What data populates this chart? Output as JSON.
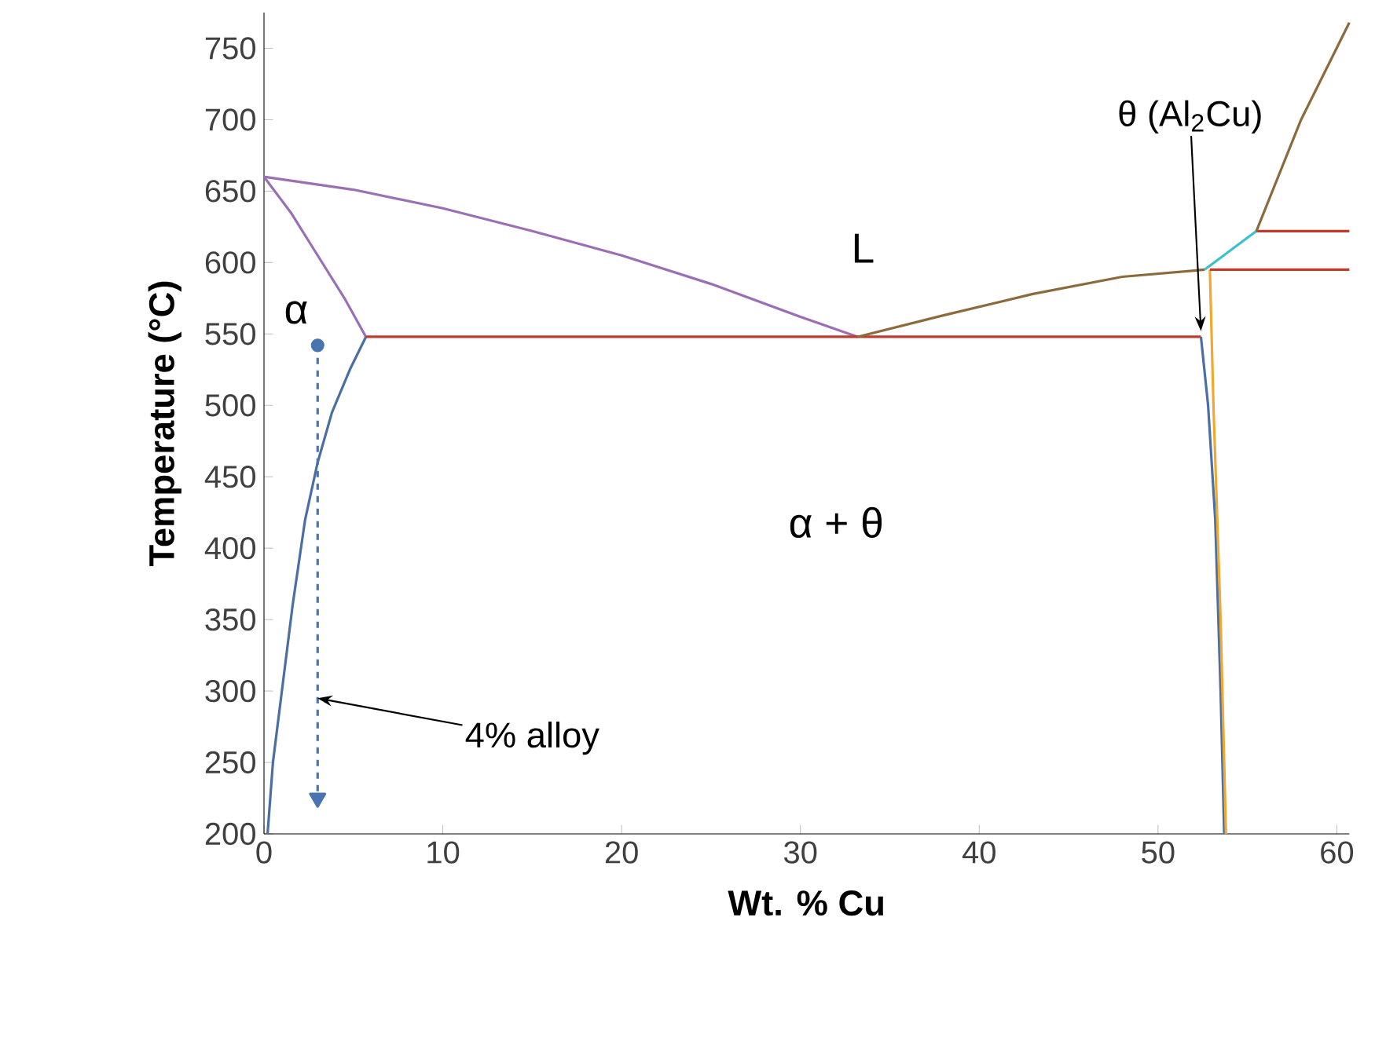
{
  "chart_data": {
    "type": "line",
    "xlabel": "Wt. % Cu",
    "ylabel": "Temperature (°C)",
    "xlim": [
      0,
      60.7
    ],
    "ylim": [
      200,
      775
    ],
    "xticks": [
      0,
      10,
      20,
      30,
      40,
      50,
      60
    ],
    "yticks": [
      200,
      250,
      300,
      350,
      400,
      450,
      500,
      550,
      600,
      650,
      700,
      750
    ],
    "grid": false,
    "marker": "none",
    "line_style": "solid",
    "series": [
      {
        "color": "#9b6fb5",
        "x": [
          0,
          5,
          10,
          15,
          20,
          25,
          30,
          33.2
        ],
        "values": [
          660,
          651,
          638,
          622,
          605,
          585,
          562,
          548
        ]
      },
      {
        "color": "#9b6fb5",
        "x": [
          0,
          1.5,
          3,
          4.5,
          5.7
        ],
        "values": [
          660,
          635,
          605,
          575,
          548
        ]
      },
      {
        "color": "#4a6fa5",
        "x": [
          5.7,
          4.8,
          3.8,
          3,
          2.3,
          1.6,
          1,
          0.5,
          0.2
        ],
        "values": [
          548,
          525,
          495,
          460,
          420,
          360,
          300,
          250,
          200
        ]
      },
      {
        "color": "#c0392b",
        "x": [
          5.7,
          52.4
        ],
        "values": [
          548,
          548
        ]
      },
      {
        "color": "#8b6b3d",
        "x": [
          33.2,
          38,
          43,
          48,
          52.6
        ],
        "values": [
          548,
          563,
          578,
          590,
          595
        ]
      },
      {
        "color": "#4a6fa5",
        "x": [
          52.4,
          52.8,
          53.2,
          53.5,
          53.7
        ],
        "values": [
          548,
          500,
          420,
          300,
          200
        ]
      },
      {
        "color": "#f0a830",
        "x": [
          52.9,
          53.1,
          53.5,
          53.8
        ],
        "values": [
          595,
          500,
          350,
          200
        ]
      },
      {
        "color": "#c0392b",
        "x": [
          52.9,
          60.7
        ],
        "values": [
          595,
          595
        ]
      },
      {
        "color": "#3cc0d0",
        "x": [
          52.6,
          55.5
        ],
        "values": [
          595,
          622
        ]
      },
      {
        "color": "#c0392b",
        "x": [
          55.5,
          60.7
        ],
        "values": [
          622,
          622
        ]
      },
      {
        "color": "#8b6b3d",
        "x": [
          55.5,
          58,
          60.7
        ],
        "values": [
          622,
          700,
          768
        ]
      },
      {
        "color": "#4a74b0",
        "line_style": "dashed",
        "marker": "triangle",
        "x": [
          3,
          3
        ],
        "values": [
          542,
          225
        ]
      },
      {
        "type": "scatter",
        "color": "#4a74b0",
        "marker": "circle",
        "x": [
          3
        ],
        "values": [
          542
        ]
      }
    ],
    "annotations": [
      "L",
      "α",
      "α + θ",
      {
        "text": "θ (Al$_{2}$Cu)",
        "x": 52.4,
        "y": 552
      },
      {
        "text": "4% alloy",
        "x": 3,
        "y": 295
      }
    ]
  }
}
